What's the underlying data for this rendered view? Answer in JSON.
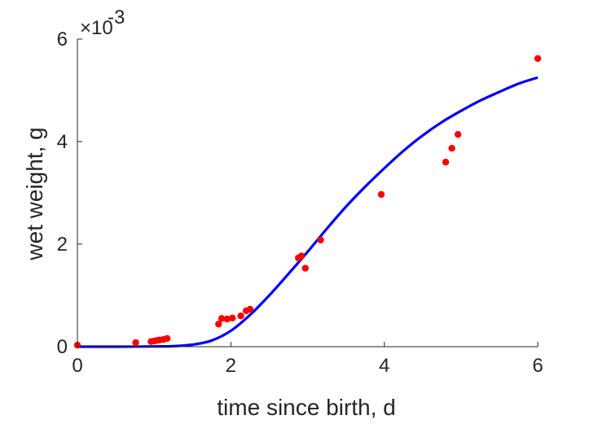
{
  "chart_data": {
    "type": "scatter",
    "title": "",
    "xlabel": "time since birth, d",
    "ylabel": "wet weight, g",
    "y_exponent_label": "×10",
    "y_exponent_power": "-3",
    "xlim": [
      0,
      6
    ],
    "ylim": [
      0,
      6
    ],
    "x_ticks": [
      0,
      2,
      4,
      6
    ],
    "y_ticks": [
      0,
      2,
      4,
      6
    ],
    "x_tick_labels": [
      "0",
      "2",
      "4",
      "6"
    ],
    "y_tick_labels": [
      "0",
      "2",
      "4",
      "6"
    ],
    "grid": false,
    "colors": {
      "points": "#ff0000",
      "curve": "#0000ff",
      "axis": "#262626"
    },
    "series": [
      {
        "kind": "scatter",
        "x": [
          0,
          0.76,
          0.96,
          1.0,
          1.03,
          1.07,
          1.12,
          1.17,
          1.84,
          1.88,
          1.95,
          2.02,
          2.13,
          2.2,
          2.25,
          2.88,
          2.92,
          2.97,
          3.17,
          3.96,
          4.8,
          4.88,
          4.96,
          6.0
        ],
        "y": [
          0.03,
          0.08,
          0.1,
          0.11,
          0.12,
          0.13,
          0.14,
          0.16,
          0.44,
          0.55,
          0.54,
          0.56,
          0.6,
          0.7,
          0.73,
          1.73,
          1.77,
          1.53,
          2.08,
          2.97,
          3.6,
          3.87,
          4.14,
          5.62
        ]
      },
      {
        "kind": "line",
        "x": [
          0,
          0.5,
          1.0,
          1.25,
          1.5,
          1.75,
          2.0,
          2.25,
          2.5,
          2.75,
          3.0,
          3.25,
          3.5,
          3.75,
          4.0,
          4.25,
          4.5,
          4.75,
          5.0,
          5.25,
          5.5,
          5.75,
          6.0
        ],
        "y": [
          0,
          0,
          0.005,
          0.01,
          0.04,
          0.12,
          0.31,
          0.62,
          1.0,
          1.42,
          1.85,
          2.3,
          2.73,
          3.12,
          3.48,
          3.82,
          4.12,
          4.38,
          4.6,
          4.8,
          4.97,
          5.13,
          5.25
        ]
      }
    ]
  }
}
